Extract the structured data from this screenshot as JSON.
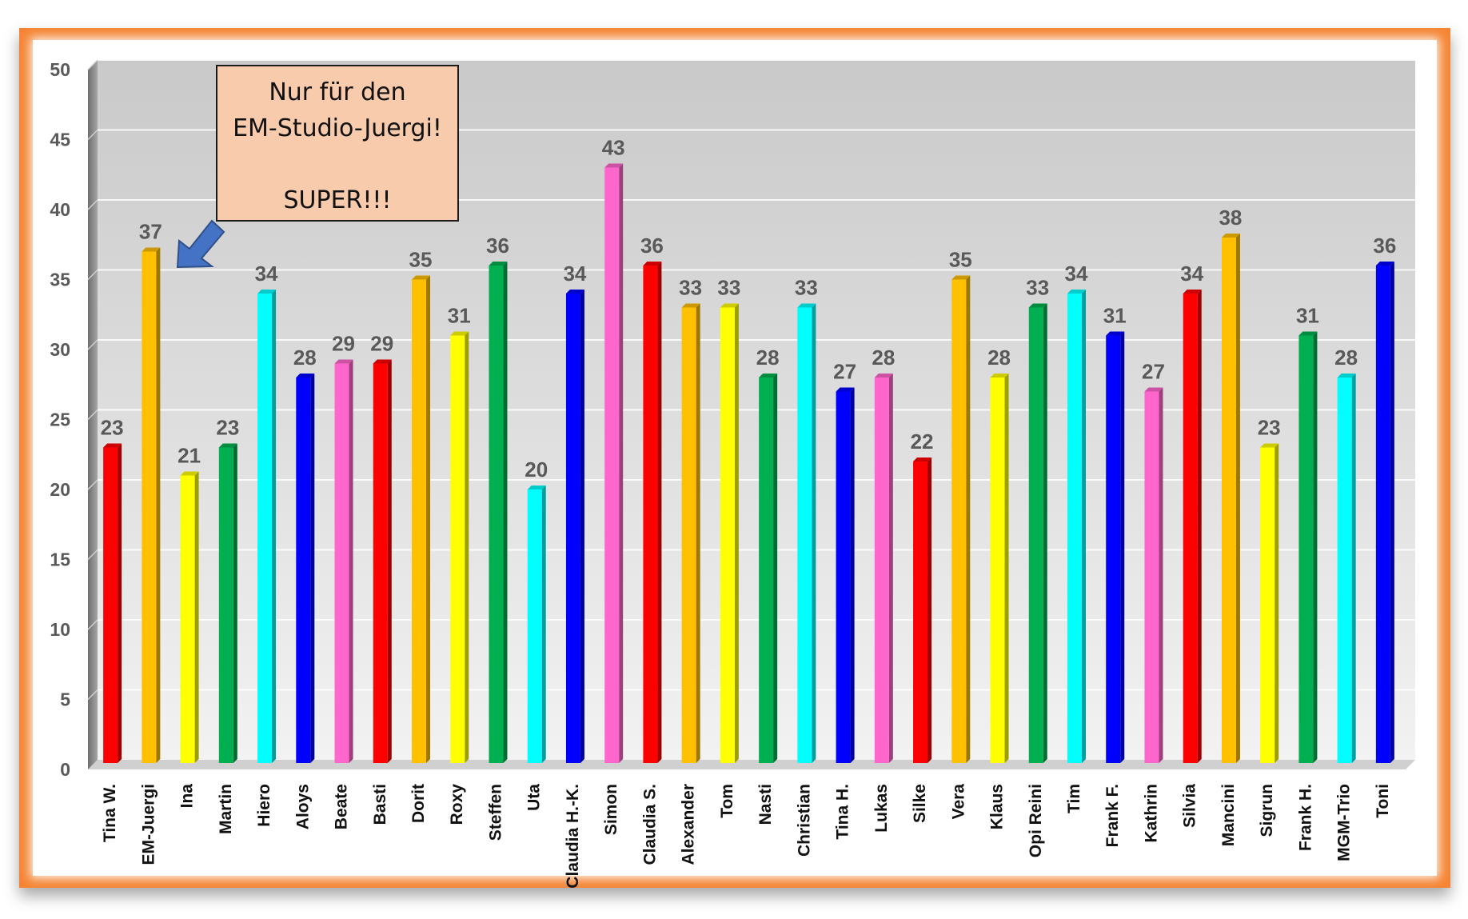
{
  "chart_data": {
    "type": "bar",
    "title": "",
    "xlabel": "",
    "ylabel": "",
    "ylim": [
      0,
      50
    ],
    "yticks": [
      0,
      5,
      10,
      15,
      20,
      25,
      30,
      35,
      40,
      45,
      50
    ],
    "grid": true,
    "legend": "none",
    "categories": [
      "Tina W.",
      "EM-Juergi",
      "Ina",
      "Martin",
      "Hiero",
      "Aloys",
      "Beate",
      "Basti",
      "Dorit",
      "Roxy",
      "Steffen",
      "Uta",
      "Claudia H.-K.",
      "Simon",
      "Claudia S.",
      "Alexander",
      "Tom",
      "Nasti",
      "Christian",
      "Tina H.",
      "Lukas",
      "Silke",
      "Vera",
      "Klaus",
      "Opi Reini",
      "Tim",
      "Frank F.",
      "Kathrin",
      "Silvia",
      "Mancini",
      "Sigrun",
      "Frank H.",
      "MGM-Trio",
      "Toni"
    ],
    "values": [
      23,
      37,
      21,
      23,
      34,
      28,
      29,
      29,
      35,
      31,
      36,
      20,
      34,
      43,
      36,
      33,
      33,
      28,
      33,
      27,
      28,
      22,
      35,
      28,
      33,
      34,
      31,
      27,
      34,
      38,
      23,
      31,
      28,
      36
    ],
    "bar_colors": [
      "#ff0000",
      "#ffc000",
      "#ffff00",
      "#00b050",
      "#00ffff",
      "#0000ff",
      "#ff66cc",
      "#ff0000",
      "#ffc000",
      "#ffff00",
      "#00b050",
      "#00ffff",
      "#0000ff",
      "#ff66cc",
      "#ff0000",
      "#ffc000",
      "#ffff00",
      "#00b050",
      "#00ffff",
      "#0000ff",
      "#ff66cc",
      "#ff0000",
      "#ffc000",
      "#ffff00",
      "#00b050",
      "#00ffff",
      "#0000ff",
      "#ff66cc",
      "#ff0000",
      "#ffc000",
      "#ffff00",
      "#00b050",
      "#00ffff",
      "#0000ff"
    ],
    "frame_color": "#f58534",
    "annotation": {
      "lines": [
        "Nur für den",
        "EM-Studio-Juergi!",
        "",
        "SUPER!!!"
      ],
      "background": "#f8cbad",
      "arrow_color": "#4472c4",
      "points_to": "EM-Juergi"
    }
  }
}
